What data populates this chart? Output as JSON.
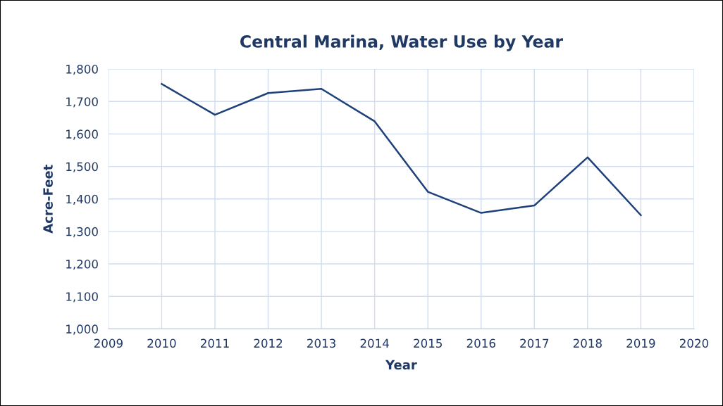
{
  "chart_data": {
    "type": "line",
    "title": "Central Marina, Water Use by Year",
    "xlabel": "Year",
    "ylabel": "Acre-Feet",
    "x": [
      2010,
      2011,
      2012,
      2013,
      2014,
      2015,
      2016,
      2017,
      2018,
      2019
    ],
    "series": [
      {
        "color": "#1f4179",
        "values": [
          1754,
          1659,
          1726,
          1739,
          1639,
          1422,
          1357,
          1380,
          1528,
          1350
        ]
      }
    ],
    "xlim": [
      2009,
      2020
    ],
    "xticks": [
      2009,
      2010,
      2011,
      2012,
      2013,
      2014,
      2015,
      2016,
      2017,
      2018,
      2019,
      2020
    ],
    "ylim": [
      1000,
      1800
    ],
    "yticks": [
      {
        "value": 1000,
        "label": "1,000"
      },
      {
        "value": 1100,
        "label": "1,100"
      },
      {
        "value": 1200,
        "label": "1,200"
      },
      {
        "value": 1300,
        "label": "1,300"
      },
      {
        "value": 1400,
        "label": "1,400"
      },
      {
        "value": 1500,
        "label": "1,500"
      },
      {
        "value": 1600,
        "label": "1,600"
      },
      {
        "value": 1700,
        "label": "1,700"
      },
      {
        "value": 1800,
        "label": "1,800"
      }
    ],
    "grid": true,
    "marker": "none",
    "line_style": "solid"
  }
}
